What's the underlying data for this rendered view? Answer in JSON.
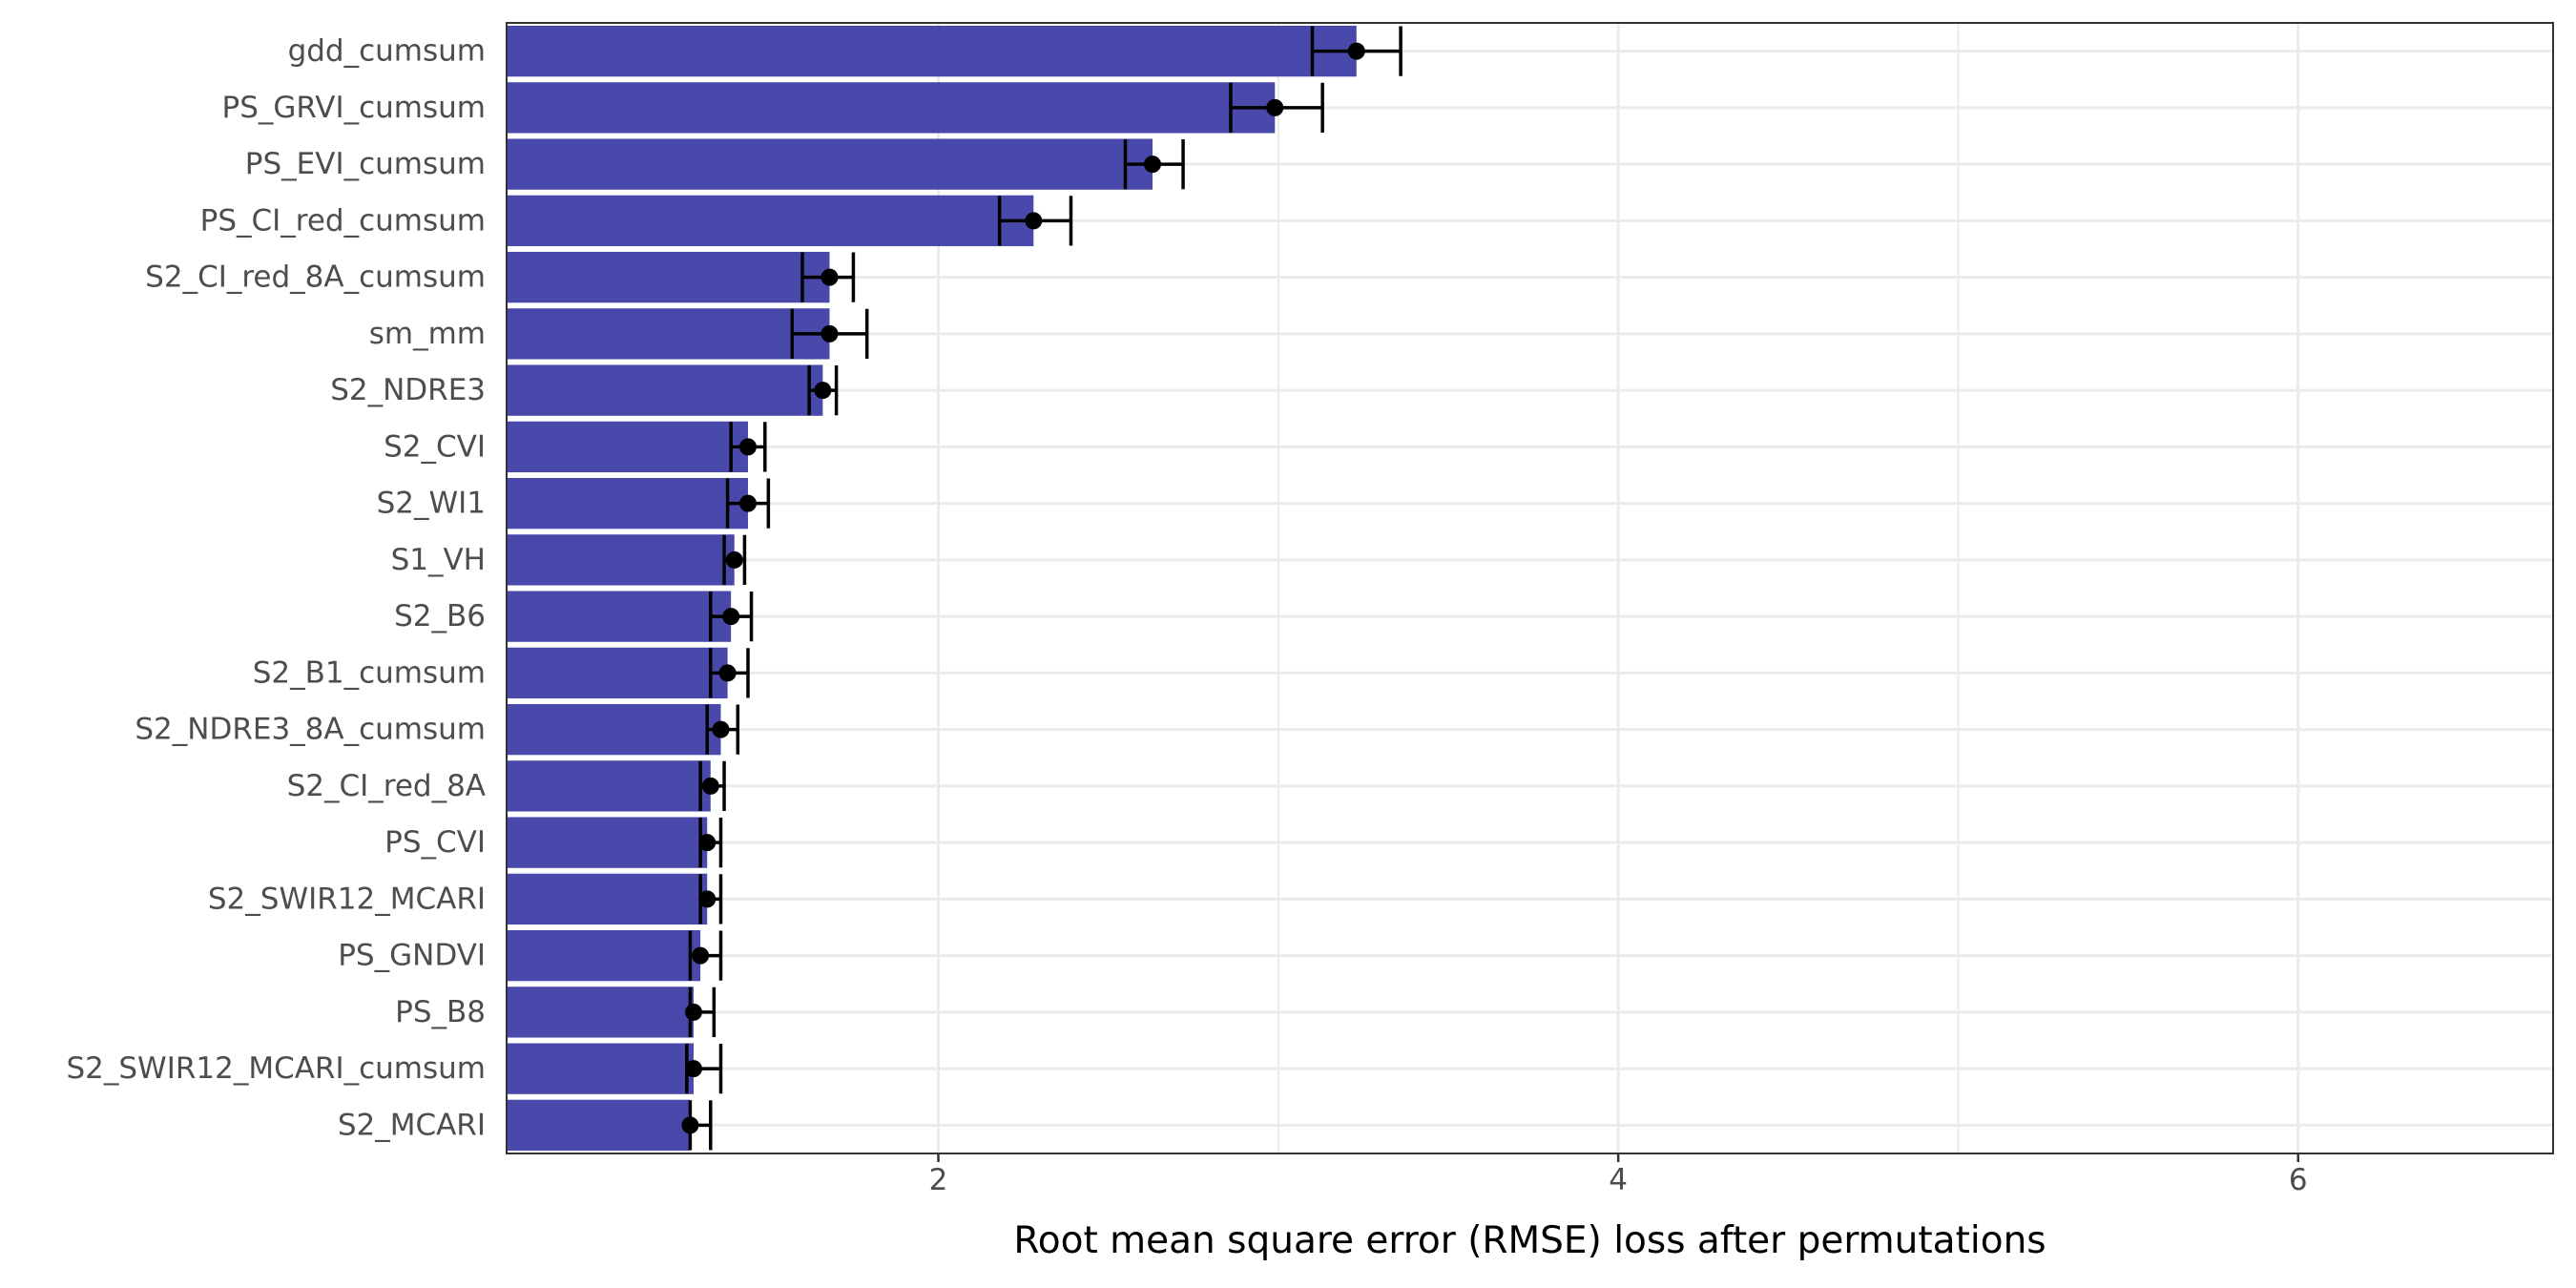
{
  "chart_data": {
    "type": "bar",
    "orientation": "horizontal",
    "title": "",
    "xlabel": "Root mean square error (RMSE) loss after permutations",
    "ylabel": "",
    "xlim": [
      0.73,
      6.75
    ],
    "x_ticks": [
      2,
      4,
      6
    ],
    "grid": true,
    "legend": "none",
    "colors": {
      "bar": "#3a3aa5",
      "error": "#000000",
      "gridline": "#ebebeb",
      "frame": "#333333"
    },
    "categories": [
      "gdd_cumsum",
      "PS_GRVI_cumsum",
      "PS_EVI_cumsum",
      "PS_CI_red_cumsum",
      "S2_CI_red_8A_cumsum",
      "sm_mm",
      "S2_NDRE3",
      "S2_CVI",
      "S2_WI1",
      "S1_VH",
      "S2_B6",
      "S2_B1_cumsum",
      "S2_NDRE3_8A_cumsum",
      "S2_CI_red_8A",
      "PS_CVI",
      "S2_SWIR12_MCARI",
      "PS_GNDVI",
      "PS_B8",
      "S2_SWIR12_MCARI_cumsum",
      "S2_MCARI"
    ],
    "values": [
      3.23,
      2.99,
      2.63,
      2.28,
      1.68,
      1.68,
      1.66,
      1.44,
      1.44,
      1.4,
      1.39,
      1.38,
      1.36,
      1.33,
      1.32,
      1.32,
      1.3,
      1.28,
      1.28,
      1.27
    ],
    "error_low": [
      3.1,
      2.86,
      2.55,
      2.18,
      1.6,
      1.57,
      1.62,
      1.39,
      1.38,
      1.37,
      1.33,
      1.33,
      1.32,
      1.3,
      1.3,
      1.3,
      1.27,
      1.27,
      1.26,
      1.27
    ],
    "error_high": [
      3.36,
      3.13,
      2.72,
      2.39,
      1.75,
      1.79,
      1.7,
      1.49,
      1.5,
      1.43,
      1.45,
      1.44,
      1.41,
      1.37,
      1.36,
      1.36,
      1.36,
      1.34,
      1.36,
      1.33
    ]
  }
}
